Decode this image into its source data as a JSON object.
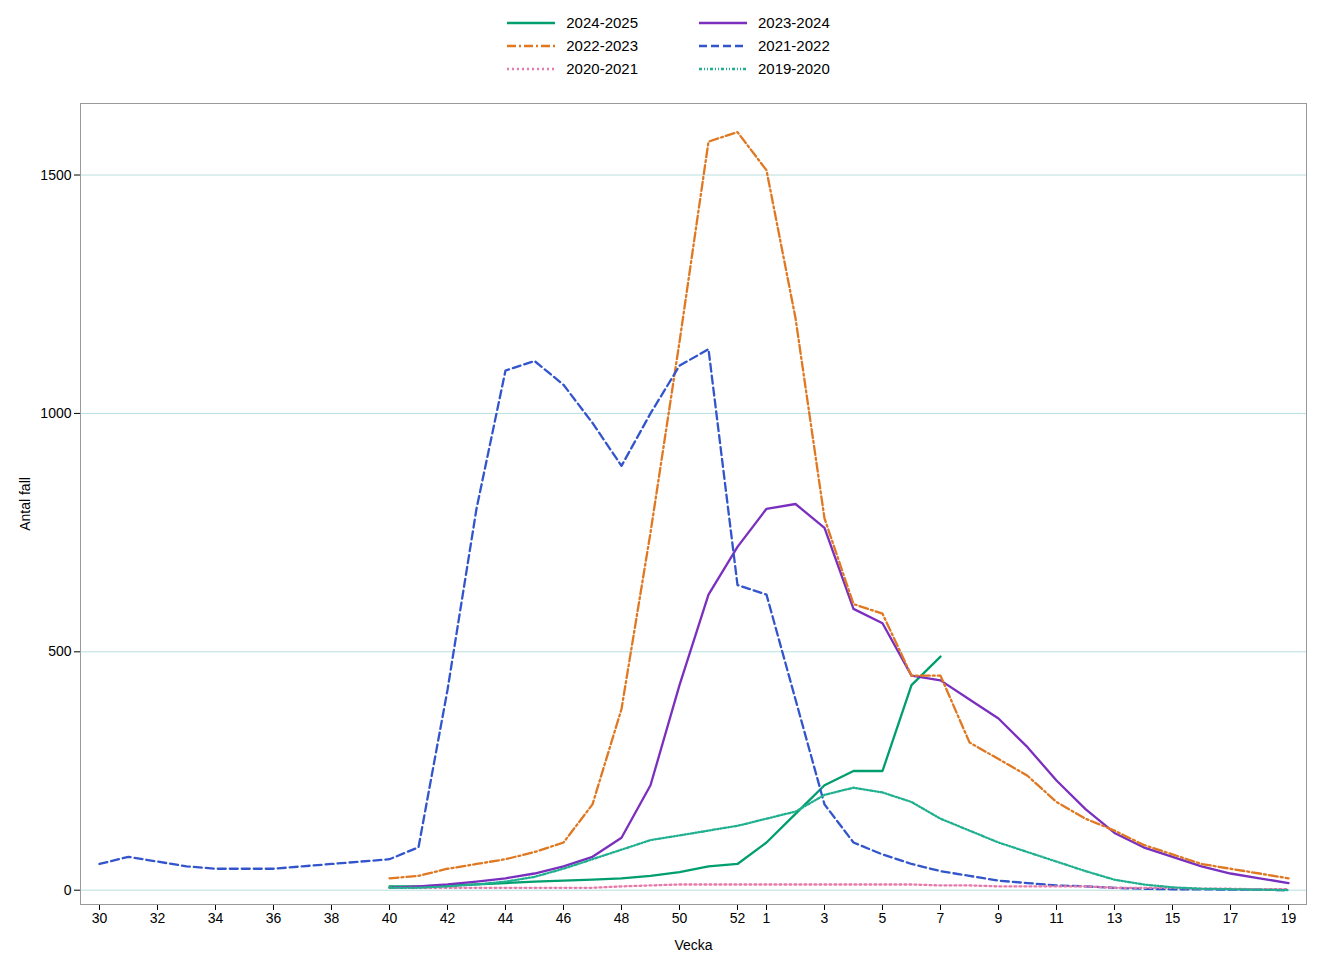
{
  "chart_data": {
    "type": "line",
    "xlabel": "Vecka",
    "ylabel": "Antal fall",
    "categories": [
      "30",
      null,
      "32",
      null,
      "34",
      null,
      "36",
      null,
      "38",
      null,
      "40",
      null,
      "42",
      null,
      "44",
      null,
      "46",
      null,
      "48",
      null,
      "50",
      null,
      "52",
      "1",
      null,
      "3",
      null,
      "5",
      null,
      "7",
      null,
      "9",
      null,
      "11",
      null,
      "13",
      null,
      "15",
      null,
      "17",
      null,
      "19"
    ],
    "ylim": [
      -30,
      1650
    ],
    "yticks": [
      0,
      500,
      1000,
      1500
    ],
    "grid": true,
    "legend": "top",
    "series": [
      {
        "name": "2024-2025",
        "color": "#009e6e",
        "line_style": "solid",
        "values": [
          null,
          null,
          null,
          null,
          null,
          null,
          null,
          null,
          null,
          null,
          8,
          8,
          10,
          12,
          15,
          18,
          20,
          22,
          25,
          30,
          38,
          50,
          55,
          100,
          160,
          220,
          250,
          250,
          430,
          490,
          null,
          null,
          null,
          null,
          null,
          null,
          null,
          null,
          null,
          null,
          null,
          null
        ]
      },
      {
        "name": "2023-2024",
        "color": "#7b2fbe",
        "line_style": "solid",
        "values": [
          null,
          null,
          null,
          null,
          null,
          null,
          null,
          null,
          null,
          null,
          5,
          8,
          12,
          18,
          25,
          35,
          50,
          70,
          110,
          220,
          430,
          620,
          720,
          800,
          810,
          760,
          590,
          560,
          450,
          440,
          400,
          360,
          300,
          230,
          170,
          120,
          90,
          70,
          50,
          35,
          25,
          15
        ]
      },
      {
        "name": "2022-2023",
        "color": "#e07822",
        "line_style": "dashdot",
        "values": [
          null,
          null,
          null,
          null,
          null,
          null,
          null,
          null,
          null,
          null,
          25,
          30,
          45,
          55,
          65,
          80,
          100,
          180,
          380,
          750,
          1150,
          1570,
          1590,
          1510,
          1200,
          780,
          600,
          580,
          450,
          450,
          310,
          275,
          240,
          185,
          150,
          125,
          95,
          75,
          55,
          45,
          35,
          25
        ]
      },
      {
        "name": "2021-2022",
        "color": "#3355cc",
        "line_style": "dashed",
        "values": [
          55,
          70,
          60,
          50,
          45,
          45,
          45,
          50,
          55,
          60,
          65,
          90,
          420,
          800,
          1090,
          1110,
          1060,
          980,
          890,
          1000,
          1100,
          1135,
          640,
          620,
          400,
          180,
          100,
          75,
          55,
          40,
          30,
          20,
          15,
          10,
          8,
          5,
          3,
          2,
          2,
          1,
          1,
          0
        ]
      },
      {
        "name": "2020-2021",
        "color": "#e87aaa",
        "line_style": "dotted",
        "values": [
          null,
          null,
          null,
          null,
          null,
          null,
          null,
          null,
          null,
          null,
          5,
          5,
          5,
          5,
          5,
          5,
          5,
          5,
          8,
          10,
          12,
          12,
          12,
          12,
          12,
          12,
          12,
          12,
          12,
          10,
          10,
          8,
          8,
          8,
          8,
          5,
          5,
          5,
          3,
          3,
          2,
          2
        ]
      },
      {
        "name": "2019-2020",
        "color": "#20b090",
        "line_style": "dashdotdot",
        "values": [
          null,
          null,
          null,
          null,
          null,
          null,
          null,
          null,
          null,
          null,
          5,
          5,
          8,
          12,
          18,
          28,
          45,
          65,
          85,
          105,
          115,
          125,
          135,
          150,
          165,
          200,
          215,
          205,
          185,
          150,
          125,
          100,
          80,
          60,
          40,
          22,
          12,
          6,
          3,
          2,
          1,
          0
        ]
      }
    ]
  }
}
